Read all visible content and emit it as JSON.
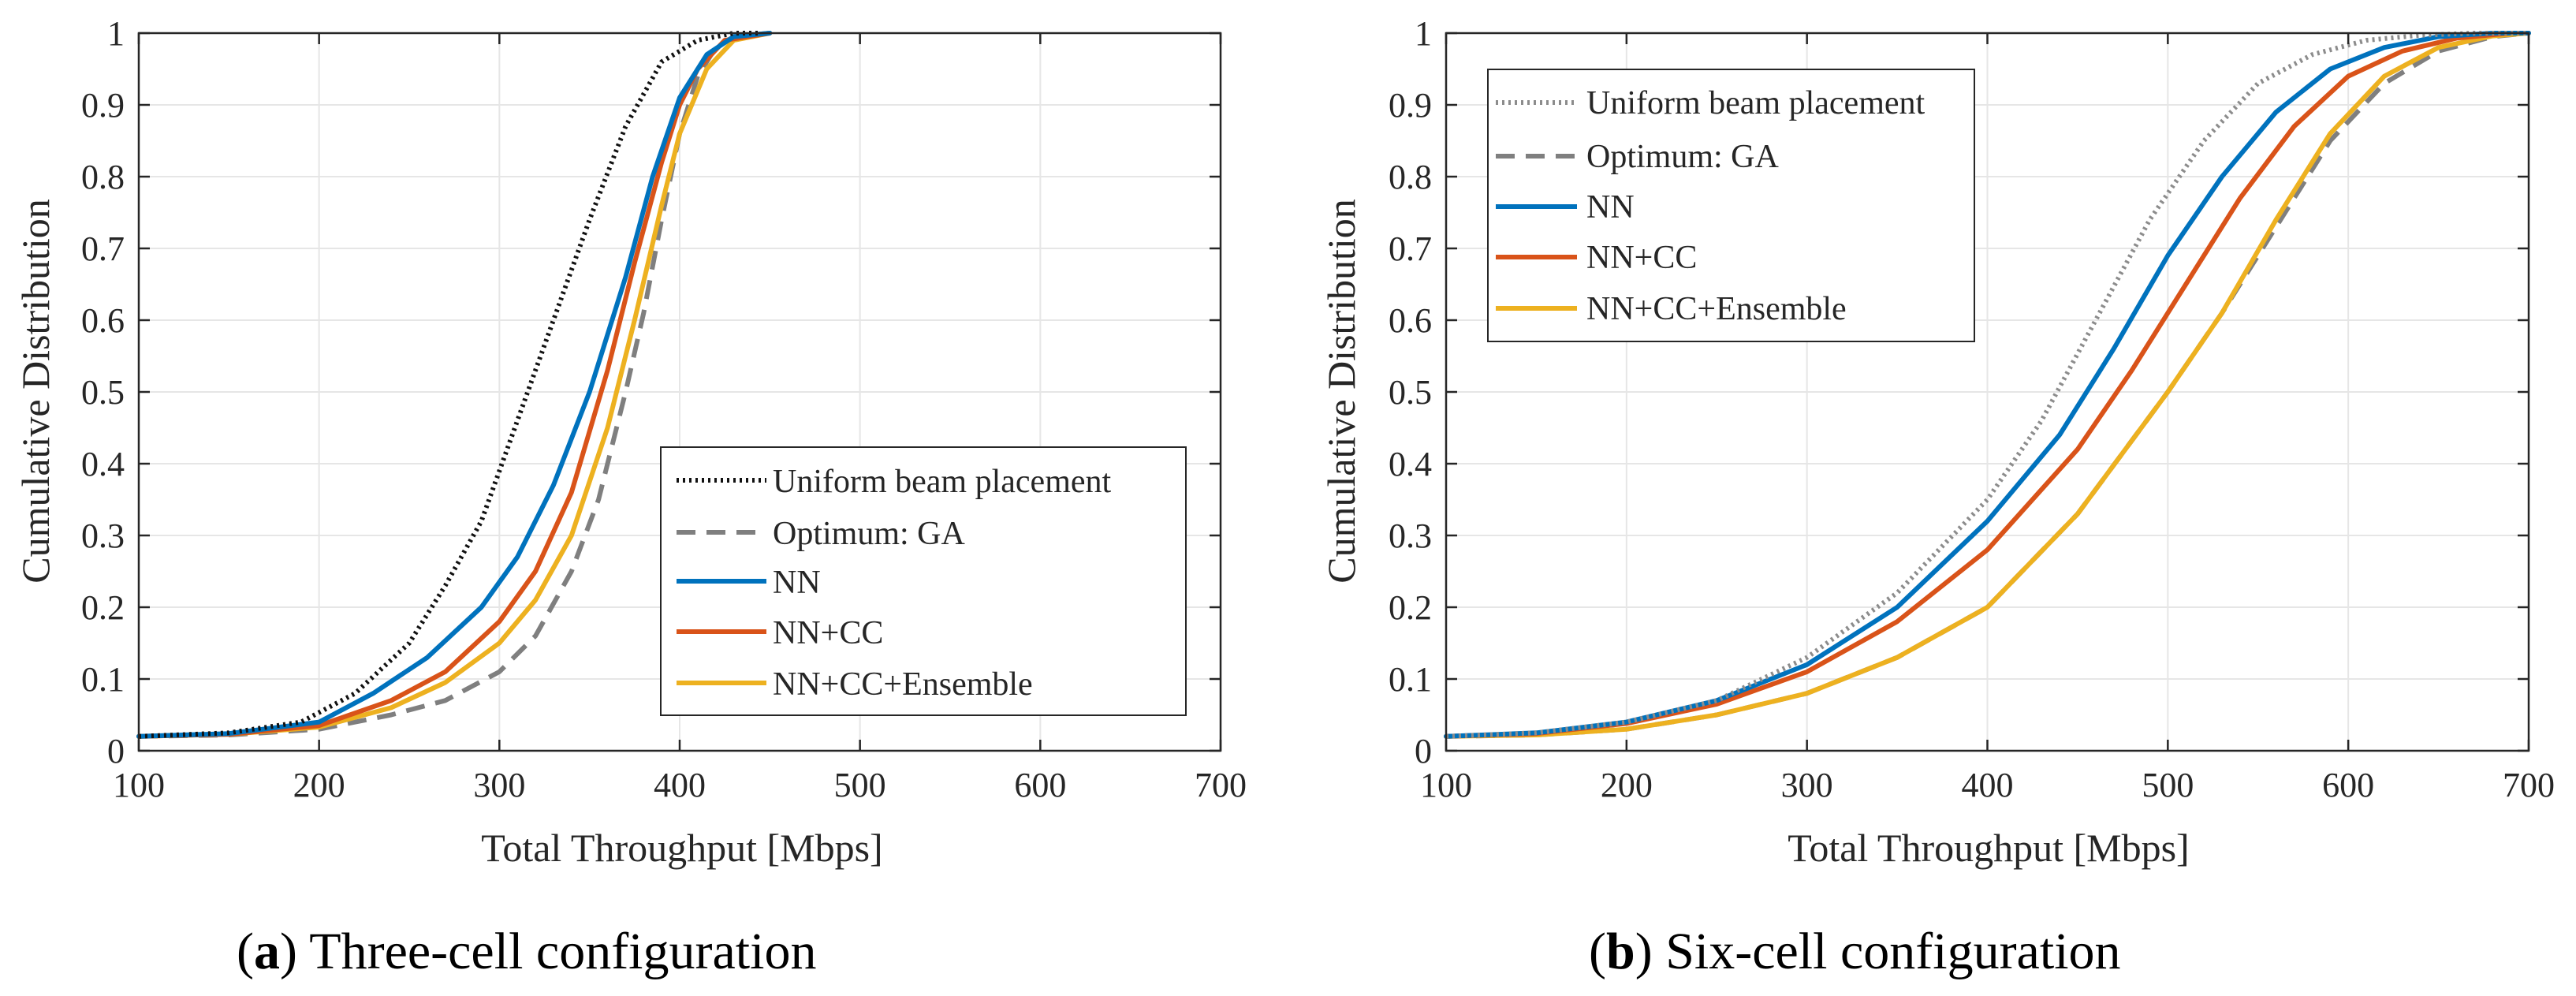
{
  "colors": {
    "uniform": "#111111",
    "uniform_b": "#8c8c8c",
    "ga": "#7f7f7f",
    "nn": "#0072bd",
    "nncc": "#d95319",
    "ens": "#edb120",
    "grid": "#e6e6e6",
    "axis": "#262626"
  },
  "captions": [
    {
      "letter": "a",
      "text": "Three-cell configuration"
    },
    {
      "letter": "b",
      "text": "Six-cell configuration"
    }
  ],
  "chart_data": [
    {
      "type": "line",
      "title": "",
      "xlabel": "Total Throughput [Mbps]",
      "ylabel": "Cumulative Distribution",
      "xlim": [
        100,
        700
      ],
      "ylim": [
        0,
        1
      ],
      "xticks": [
        100,
        200,
        300,
        400,
        500,
        600,
        700
      ],
      "yticks": [
        0,
        0.1,
        0.2,
        0.3,
        0.4,
        0.5,
        0.6,
        0.7,
        0.8,
        0.9,
        1
      ],
      "ytick_labels": [
        "0",
        "0.1",
        "0.2",
        "0.3",
        "0.4",
        "0.5",
        "0.6",
        "0.7",
        "0.8",
        "0.9",
        "1"
      ],
      "grid": true,
      "legend_position": "bottom-right",
      "series": [
        {
          "name": "Uniform beam placement",
          "style": "dotted",
          "color_key": "uniform",
          "x": [
            100,
            150,
            190,
            220,
            250,
            270,
            290,
            310,
            330,
            350,
            370,
            390,
            410,
            430,
            445
          ],
          "y": [
            0.02,
            0.025,
            0.04,
            0.08,
            0.15,
            0.23,
            0.32,
            0.46,
            0.6,
            0.74,
            0.87,
            0.96,
            0.99,
            1.0,
            1.0
          ]
        },
        {
          "name": "Optimum: GA",
          "style": "dashed",
          "color_key": "ga",
          "x": [
            100,
            150,
            200,
            240,
            270,
            300,
            320,
            340,
            355,
            370,
            380,
            390,
            400,
            410,
            420,
            430,
            450
          ],
          "y": [
            0.02,
            0.022,
            0.03,
            0.05,
            0.07,
            0.11,
            0.16,
            0.25,
            0.35,
            0.5,
            0.61,
            0.74,
            0.86,
            0.94,
            0.98,
            0.995,
            1.0
          ]
        },
        {
          "name": "NN",
          "style": "solid",
          "color_key": "nn",
          "x": [
            100,
            150,
            200,
            230,
            260,
            290,
            310,
            330,
            350,
            370,
            385,
            400,
            415,
            430,
            450
          ],
          "y": [
            0.02,
            0.024,
            0.04,
            0.08,
            0.13,
            0.2,
            0.27,
            0.37,
            0.5,
            0.66,
            0.8,
            0.91,
            0.97,
            0.995,
            1.0
          ]
        },
        {
          "name": "NN+CC",
          "style": "solid",
          "color_key": "nncc",
          "x": [
            100,
            150,
            200,
            240,
            270,
            300,
            320,
            340,
            360,
            375,
            390,
            400,
            410,
            425,
            450
          ],
          "y": [
            0.02,
            0.023,
            0.035,
            0.07,
            0.11,
            0.18,
            0.25,
            0.36,
            0.53,
            0.68,
            0.82,
            0.9,
            0.95,
            0.99,
            1.0
          ]
        },
        {
          "name": "NN+CC+Ensemble",
          "style": "solid",
          "color_key": "ens",
          "x": [
            100,
            150,
            200,
            240,
            270,
            300,
            320,
            340,
            360,
            375,
            390,
            400,
            415,
            430,
            450
          ],
          "y": [
            0.02,
            0.023,
            0.033,
            0.06,
            0.095,
            0.15,
            0.21,
            0.3,
            0.45,
            0.6,
            0.76,
            0.86,
            0.95,
            0.99,
            1.0
          ]
        }
      ]
    },
    {
      "type": "line",
      "title": "",
      "xlabel": "Total Throughput [Mbps]",
      "ylabel": "Cumulative Distribution",
      "xlim": [
        100,
        700
      ],
      "ylim": [
        0,
        1
      ],
      "xticks": [
        100,
        200,
        300,
        400,
        500,
        600,
        700
      ],
      "yticks": [
        0,
        0.1,
        0.2,
        0.3,
        0.4,
        0.5,
        0.6,
        0.7,
        0.8,
        0.9,
        1
      ],
      "ytick_labels": [
        "0",
        "0.1",
        "0.2",
        "0.3",
        "0.4",
        "0.5",
        "0.6",
        "0.7",
        "0.8",
        "0.9",
        "1"
      ],
      "grid": true,
      "legend_position": "top-left",
      "series": [
        {
          "name": "Uniform beam placement",
          "style": "dotted",
          "color_key": "uniform_b",
          "x": [
            100,
            150,
            200,
            250,
            300,
            350,
            400,
            430,
            460,
            490,
            520,
            550,
            580,
            610,
            640,
            670,
            700
          ],
          "y": [
            0.02,
            0.025,
            0.04,
            0.07,
            0.13,
            0.22,
            0.35,
            0.46,
            0.6,
            0.74,
            0.85,
            0.93,
            0.97,
            0.99,
            0.997,
            1.0,
            1.0
          ]
        },
        {
          "name": "Optimum: GA",
          "style": "dashed",
          "color_key": "ga",
          "x": [
            100,
            150,
            200,
            250,
            300,
            350,
            400,
            450,
            500,
            530,
            560,
            590,
            620,
            650,
            680,
            700
          ],
          "y": [
            0.02,
            0.022,
            0.03,
            0.05,
            0.08,
            0.13,
            0.2,
            0.33,
            0.5,
            0.61,
            0.73,
            0.85,
            0.93,
            0.975,
            0.995,
            1.0
          ]
        },
        {
          "name": "NN",
          "style": "solid",
          "color_key": "nn",
          "x": [
            100,
            150,
            200,
            250,
            300,
            350,
            400,
            440,
            470,
            500,
            530,
            560,
            590,
            620,
            650,
            680,
            700
          ],
          "y": [
            0.02,
            0.025,
            0.04,
            0.07,
            0.12,
            0.2,
            0.32,
            0.44,
            0.56,
            0.69,
            0.8,
            0.89,
            0.95,
            0.98,
            0.995,
            1.0,
            1.0
          ]
        },
        {
          "name": "NN+CC",
          "style": "solid",
          "color_key": "nncc",
          "x": [
            100,
            150,
            200,
            250,
            300,
            350,
            400,
            450,
            480,
            510,
            540,
            570,
            600,
            630,
            660,
            690,
            700
          ],
          "y": [
            0.02,
            0.024,
            0.038,
            0.065,
            0.11,
            0.18,
            0.28,
            0.42,
            0.53,
            0.65,
            0.77,
            0.87,
            0.94,
            0.975,
            0.993,
            1.0,
            1.0
          ]
        },
        {
          "name": "NN+CC+Ensemble",
          "style": "solid",
          "color_key": "ens",
          "x": [
            100,
            150,
            200,
            250,
            300,
            350,
            400,
            450,
            500,
            530,
            560,
            590,
            620,
            650,
            680,
            700
          ],
          "y": [
            0.02,
            0.022,
            0.03,
            0.05,
            0.08,
            0.13,
            0.2,
            0.33,
            0.5,
            0.61,
            0.74,
            0.86,
            0.94,
            0.98,
            0.996,
            1.0
          ]
        }
      ]
    }
  ]
}
